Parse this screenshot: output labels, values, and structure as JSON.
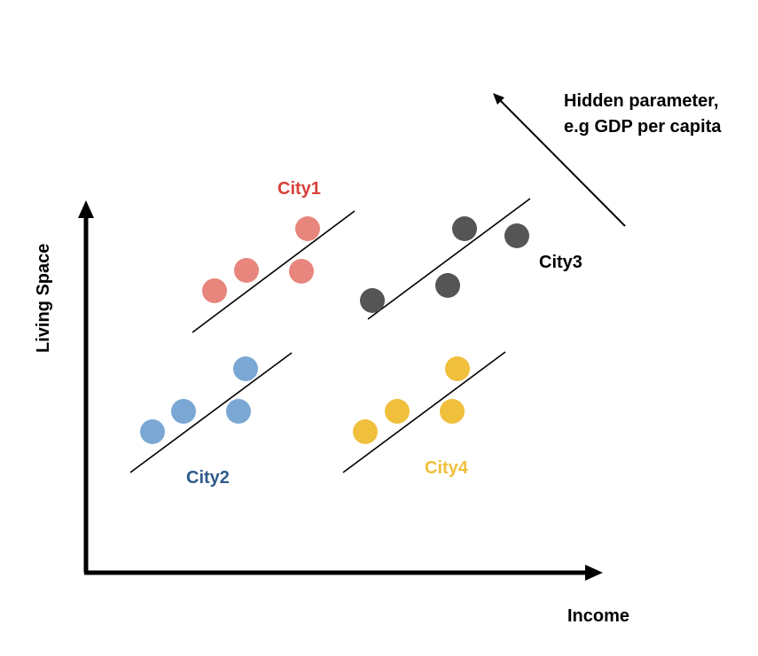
{
  "axes": {
    "x_label": "Income",
    "y_label": "Living Space"
  },
  "hidden_parameter": {
    "line1": "Hidden parameter,",
    "line2": "e.g GDP per capita"
  },
  "colors": {
    "city1": "#E8857C",
    "city1_label": "#D9403A",
    "city2": "#7BA7D4",
    "city2_label": "#2F5A8A",
    "city3": "#555555",
    "city3_label": "#000000",
    "city4": "#F0BF3C",
    "city4_label": "#F0BF3C",
    "axis": "#000000"
  },
  "clusters": [
    {
      "name": "City1",
      "points": 4
    },
    {
      "name": "City2",
      "points": 4
    },
    {
      "name": "City3",
      "points": 4
    },
    {
      "name": "City4",
      "points": 4
    }
  ]
}
